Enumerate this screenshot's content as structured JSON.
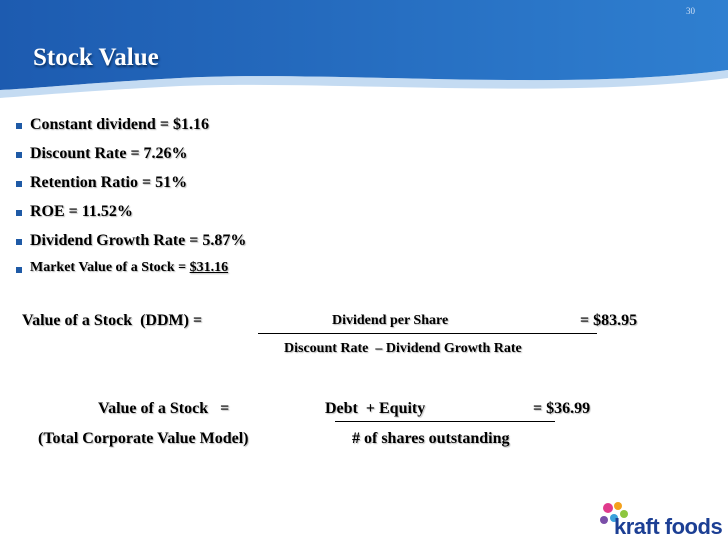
{
  "slide_number": "30",
  "title": "Stock Value",
  "bullets": [
    {
      "text": "Constant dividend = $1.16"
    },
    {
      "text": "Discount Rate = 7.26%"
    },
    {
      "text": "Retention Ratio = 51%"
    },
    {
      "text": "ROE = 11.52%"
    },
    {
      "text": "Dividend Growth Rate = 5.87%"
    },
    {
      "text": "Market Value of a Stock = ",
      "value": "$31.16"
    }
  ],
  "formulas": [
    {
      "left": "Value of a Stock  (DDM) =",
      "numerator": "Dividend per Share",
      "result": "= $83.95",
      "denominator": "Discount Rate  – Dividend Growth Rate"
    },
    {
      "left": "Value of a Stock   =",
      "left_sub": "(Total Corporate Value Model)",
      "numerator": "Debt  + Equity",
      "result": "= $36.99",
      "denominator": "# of shares outstanding"
    }
  ],
  "logo": "kraft foods"
}
